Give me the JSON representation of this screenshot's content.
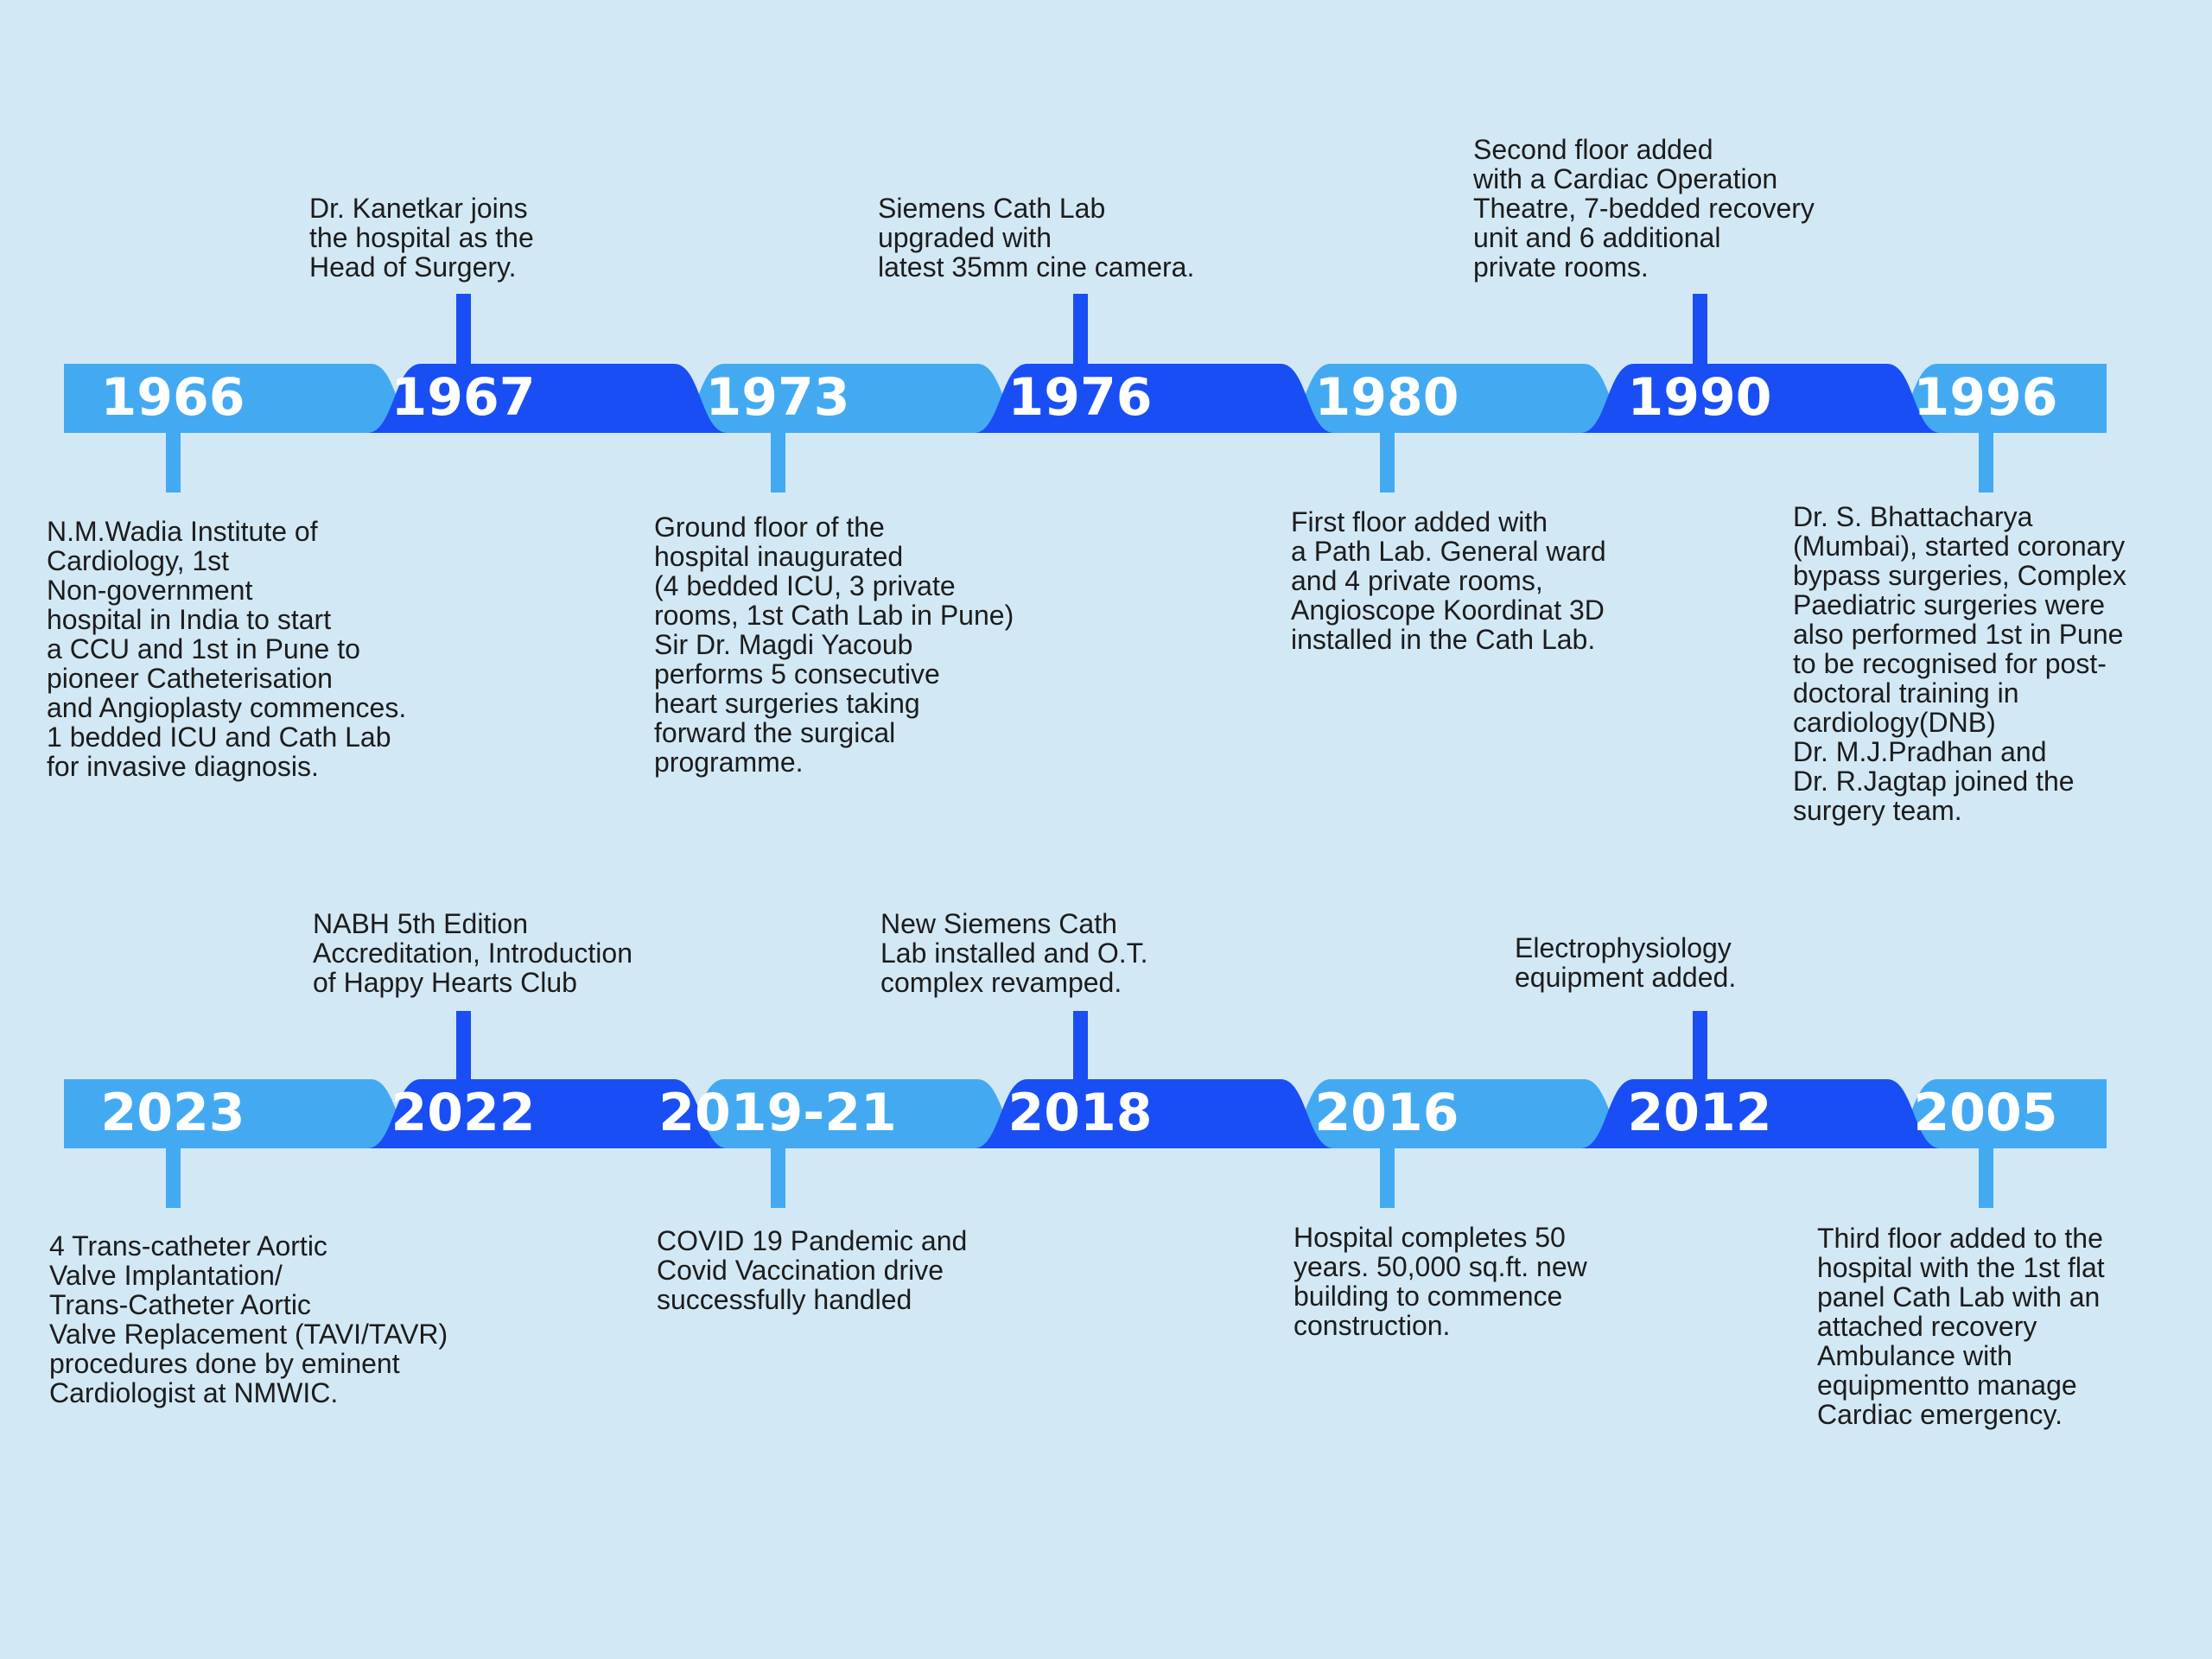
{
  "colors": {
    "background": "#d3e8f5",
    "light_segment": "#43aaf2",
    "dark_segment": "#1a4ef5",
    "year_text": "#ffffff",
    "body_text": "#1c1c1c"
  },
  "rows": [
    {
      "name": "row-1966-1996",
      "milestones": [
        {
          "year": "1966",
          "tone": "light",
          "side": "below",
          "text": "N.M.Wadia Institute of\nCardiology, 1st\nNon-government\nhospital in India to start\na CCU and 1st in Pune to\npioneer Catheterisation\nand Angioplasty commences.\n1 bedded ICU and Cath Lab\nfor invasive diagnosis."
        },
        {
          "year": "1967",
          "tone": "dark",
          "side": "above",
          "text": "Dr. Kanetkar joins\nthe hospital as the\nHead of Surgery."
        },
        {
          "year": "1973",
          "tone": "light",
          "side": "below",
          "text": "Ground floor of the\nhospital inaugurated\n(4 bedded ICU, 3 private\nrooms, 1st Cath Lab in Pune)\nSir Dr. Magdi Yacoub\nperforms 5 consecutive\nheart surgeries taking\nforward the surgical\nprogramme."
        },
        {
          "year": "1976",
          "tone": "dark",
          "side": "above",
          "text": "Siemens Cath Lab\nupgraded with\nlatest 35mm cine camera."
        },
        {
          "year": "1980",
          "tone": "light",
          "side": "below",
          "text": "First floor added with\na Path Lab. General ward\nand 4 private rooms,\nAngioscope Koordinat 3D\ninstalled in the Cath Lab."
        },
        {
          "year": "1990",
          "tone": "dark",
          "side": "above",
          "text": "Second floor added\nwith a Cardiac Operation\nTheatre, 7-bedded recovery\nunit and 6 additional\nprivate rooms."
        },
        {
          "year": "1996",
          "tone": "light",
          "side": "below",
          "text": "Dr. S. Bhattacharya\n(Mumbai), started coronary\nbypass surgeries, Complex\nPaediatric surgeries were\nalso performed 1st in Pune\nto be recognised for post-\ndoctoral training in\ncardiology(DNB)\nDr. M.J.Pradhan and\nDr. R.Jagtap joined the\nsurgery team."
        }
      ]
    },
    {
      "name": "row-2023-2005",
      "milestones": [
        {
          "year": "2023",
          "tone": "light",
          "side": "below",
          "text": "4 Trans-catheter Aortic\nValve Implantation/\nTrans-Catheter Aortic\nValve Replacement (TAVI/TAVR)\nprocedures done by eminent\nCardiologist at NMWIC."
        },
        {
          "year": "2022",
          "tone": "dark",
          "side": "above",
          "text": "NABH 5th Edition\nAccreditation, Introduction\nof Happy Hearts Club"
        },
        {
          "year": "2019-21",
          "tone": "light",
          "side": "below",
          "text": "COVID 19 Pandemic and\nCovid Vaccination drive\nsuccessfully handled"
        },
        {
          "year": "2018",
          "tone": "dark",
          "side": "above",
          "text": "New Siemens Cath\nLab installed and O.T.\ncomplex revamped."
        },
        {
          "year": "2016",
          "tone": "light",
          "side": "below",
          "text": "Hospital completes 50\nyears. 50,000 sq.ft. new\nbuilding to commence\nconstruction."
        },
        {
          "year": "2012",
          "tone": "dark",
          "side": "above",
          "text": "Electrophysiology\nequipment added."
        },
        {
          "year": "2005",
          "tone": "light",
          "side": "below",
          "text": "Third floor added to the\nhospital with the 1st flat\npanel Cath Lab with an\nattached recovery\nAmbulance with\nequipmentto manage\nCardiac emergency."
        }
      ]
    }
  ]
}
